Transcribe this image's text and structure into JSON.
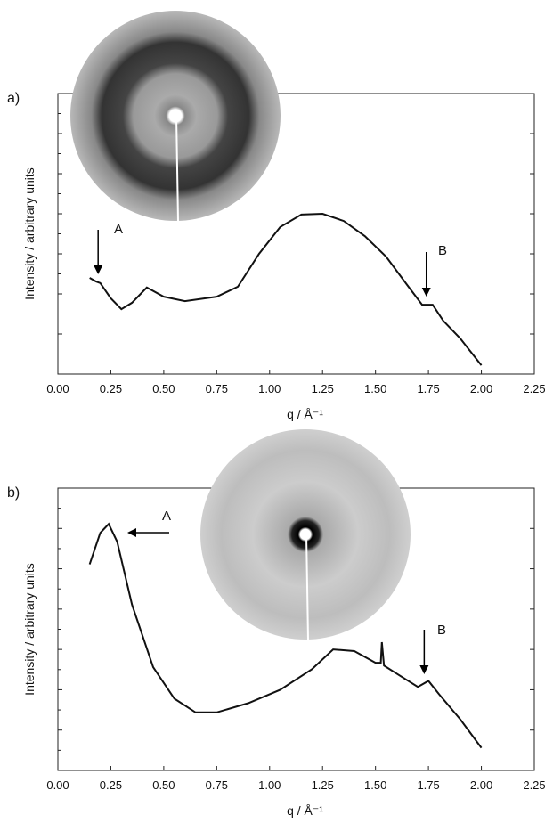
{
  "chart_data": [
    {
      "type": "line",
      "panel_label": "a)",
      "y_label": "Intensity / arbitrary units",
      "x_label": "q / Å⁻¹",
      "annotations": [
        "A",
        "B"
      ],
      "xlim": [
        0,
        2.25
      ],
      "xticks": [
        {
          "value": 0,
          "label": "0.00"
        },
        {
          "value": 0.25,
          "label": "0.25"
        },
        {
          "value": 0.5,
          "label": "0.50"
        },
        {
          "value": 0.75,
          "label": "0.75"
        },
        {
          "value": 1,
          "label": "1.00"
        },
        {
          "value": 1.25,
          "label": "1.25"
        },
        {
          "value": 1.5,
          "label": "1.50"
        },
        {
          "value": 1.75,
          "label": "1.75"
        },
        {
          "value": 2,
          "label": "2.00"
        },
        {
          "value": 2.25,
          "label": "2.25"
        }
      ],
      "ylim": [
        0,
        7
      ],
      "series": [
        {
          "color": "#111111",
          "x": [
            0.15,
            0.18,
            0.2,
            0.25,
            0.3,
            0.35,
            0.42,
            0.5,
            0.6,
            0.75,
            0.85,
            0.95,
            1.05,
            1.15,
            1.25,
            1.35,
            1.45,
            1.55,
            1.65,
            1.72,
            1.77,
            1.82,
            1.9,
            2.0
          ],
          "values": [
            2.4,
            2.31,
            2.27,
            1.89,
            1.62,
            1.78,
            2.16,
            1.93,
            1.82,
            1.93,
            2.18,
            3.0,
            3.67,
            3.98,
            4.0,
            3.82,
            3.44,
            2.93,
            2.22,
            1.73,
            1.73,
            1.33,
            0.89,
            0.22
          ]
        }
      ]
    },
    {
      "type": "line",
      "panel_label": "b)",
      "y_label": "Intensity / arbitrary units",
      "x_label": "q / Å⁻¹",
      "annotations": [
        "A",
        "B"
      ],
      "xlim": [
        0,
        2.25
      ],
      "xticks": [
        {
          "value": 0,
          "label": "0.00"
        },
        {
          "value": 0.25,
          "label": "0.25"
        },
        {
          "value": 0.5,
          "label": "0.50"
        },
        {
          "value": 0.75,
          "label": "0.75"
        },
        {
          "value": 1,
          "label": "1.00"
        },
        {
          "value": 1.25,
          "label": "1.25"
        },
        {
          "value": 1.5,
          "label": "1.50"
        },
        {
          "value": 1.75,
          "label": "1.75"
        },
        {
          "value": 2,
          "label": "2.00"
        },
        {
          "value": 2.25,
          "label": "2.25"
        }
      ],
      "ylim": [
        0,
        7
      ],
      "series": [
        {
          "color": "#111111",
          "x": [
            0.15,
            0.2,
            0.24,
            0.28,
            0.35,
            0.45,
            0.55,
            0.65,
            0.75,
            0.9,
            1.05,
            1.2,
            1.3,
            1.4,
            1.5,
            1.525,
            1.53,
            1.54,
            1.6,
            1.7,
            1.75,
            1.8,
            1.9,
            2.0
          ],
          "values": [
            5.11,
            5.89,
            6.11,
            5.67,
            4.11,
            2.56,
            1.78,
            1.44,
            1.44,
            1.67,
            2.0,
            2.51,
            3.0,
            2.96,
            2.67,
            2.67,
            3.18,
            2.6,
            2.4,
            2.07,
            2.22,
            1.89,
            1.27,
            0.56
          ]
        }
      ]
    }
  ]
}
